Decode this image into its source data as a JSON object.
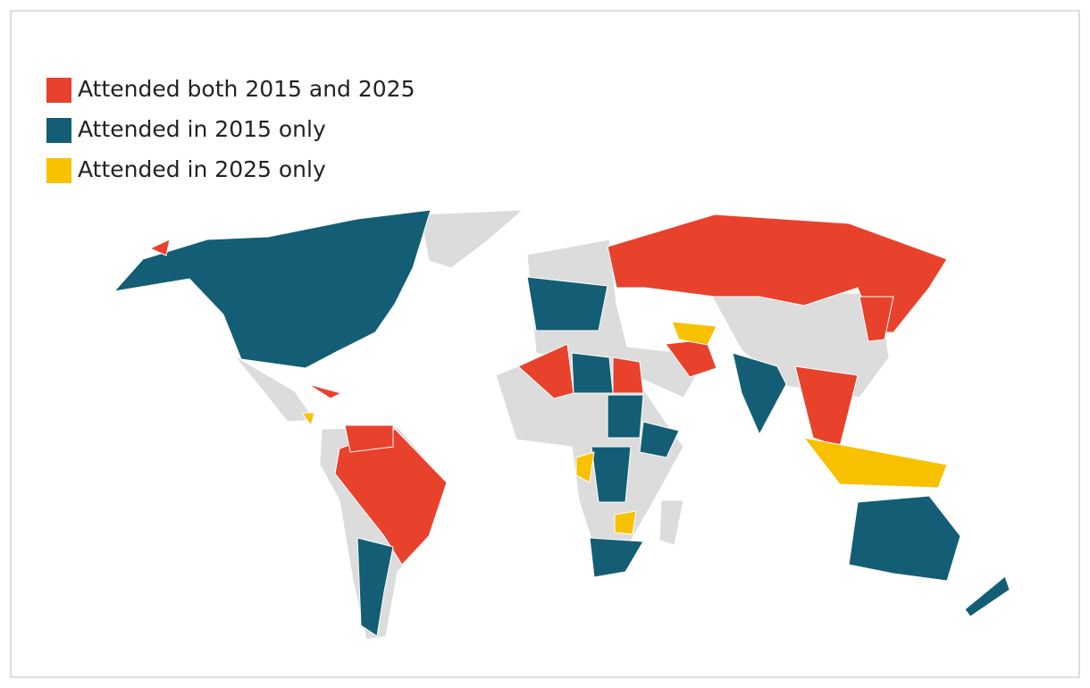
{
  "legend": {
    "items": [
      {
        "label": "Attended both 2015 and 2025",
        "color": "#e8412c"
      },
      {
        "label": "Attended in 2015 only",
        "color": "#135e75"
      },
      {
        "label": "Attended in 2025 only",
        "color": "#f7c100"
      }
    ]
  }
}
